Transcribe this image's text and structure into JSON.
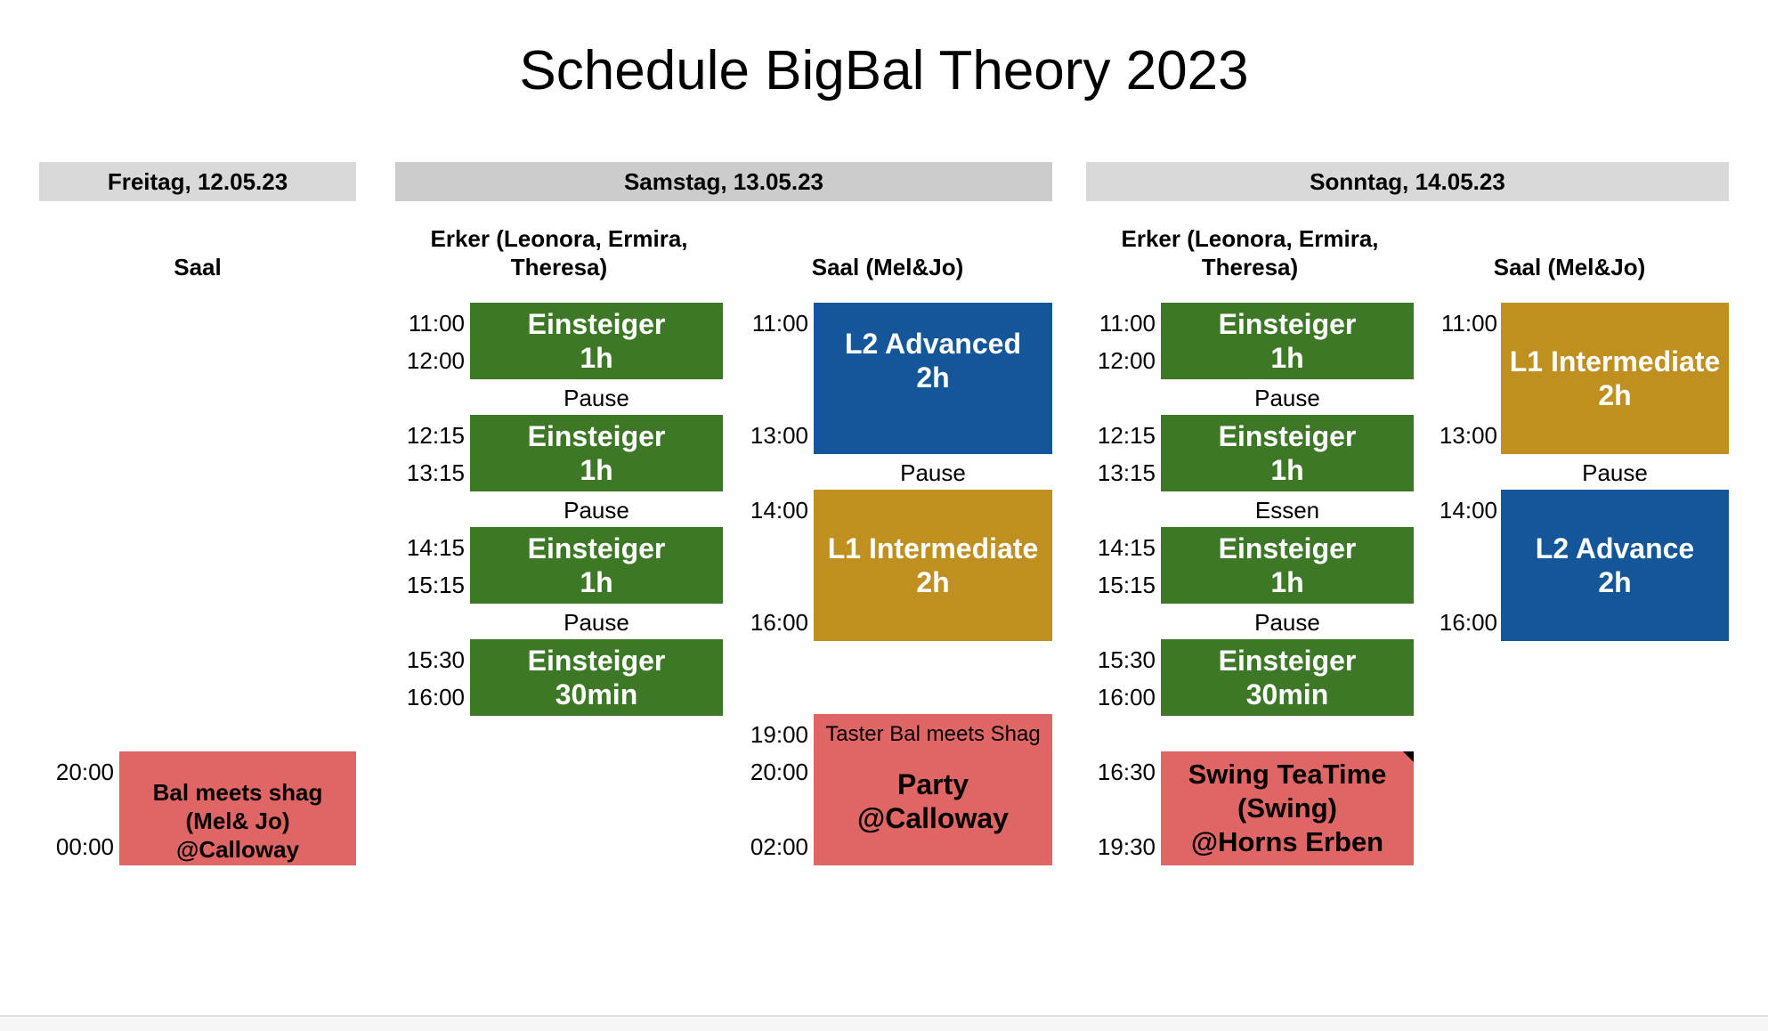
{
  "title": "Schedule BigBal Theory 2023",
  "days": {
    "fri": "Freitag, 12.05.23",
    "sat": "Samstag, 13.05.23",
    "sun": "Sonntag, 14.05.23"
  },
  "rooms": {
    "fri_saal": "Saal",
    "sat_erker": "Erker (Leonora, Ermira, Theresa)",
    "sat_saal": "Saal (Mel&Jo)",
    "sun_erker": "Erker (Leonora, Ermira, Theresa)",
    "sun_saal": "Saal (Mel&Jo)"
  },
  "friday": {
    "event": {
      "start": "20:00",
      "end": "00:00",
      "line1": "Bal meets shag",
      "line2": "(Mel& Jo)",
      "line3": "@Calloway"
    }
  },
  "sat_erker": {
    "slots": [
      {
        "start": "11:00",
        "end": "12:00",
        "line1": "Einsteiger",
        "line2": "1h"
      },
      {
        "start": "12:15",
        "end": "13:15",
        "line1": "Einsteiger",
        "line2": "1h"
      },
      {
        "start": "14:15",
        "end": "15:15",
        "line1": "Einsteiger",
        "line2": "1h"
      },
      {
        "start": "15:30",
        "end": "16:00",
        "line1": "Einsteiger",
        "line2": "30min"
      }
    ],
    "breaks": [
      "Pause",
      "Pause",
      "Pause"
    ]
  },
  "sat_saal": {
    "l2": {
      "start": "11:00",
      "end": "13:00",
      "line1": "L2 Advanced",
      "line2": "2h"
    },
    "break": "Pause",
    "l1": {
      "start": "14:00",
      "end": "16:00",
      "line1": "L1 Intermediate",
      "line2": "2h"
    },
    "party": {
      "t1": "19:00",
      "t2": "20:00",
      "t3": "02:00",
      "taster": "Taster Bal meets Shag",
      "line1": "Party",
      "line2": "@Calloway"
    }
  },
  "sun_erker": {
    "slots": [
      {
        "start": "11:00",
        "end": "12:00",
        "line1": "Einsteiger",
        "line2": "1h"
      },
      {
        "start": "12:15",
        "end": "13:15",
        "line1": "Einsteiger",
        "line2": "1h"
      },
      {
        "start": "14:15",
        "end": "15:15",
        "line1": "Einsteiger",
        "line2": "1h"
      },
      {
        "start": "15:30",
        "end": "16:00",
        "line1": "Einsteiger",
        "line2": "30min"
      }
    ],
    "breaks": [
      "Pause",
      "Essen",
      "Pause"
    ],
    "teatime": {
      "start": "16:30",
      "end": "19:30",
      "line1": "Swing TeaTime",
      "line2": "(Swing)",
      "line3": "@Horns Erben"
    }
  },
  "sun_saal": {
    "l1": {
      "start": "11:00",
      "end": "13:00",
      "line1": "L1 Intermediate",
      "line2": "2h"
    },
    "break": "Pause",
    "l2": {
      "start": "14:00",
      "end": "16:00",
      "line1": "L2 Advance",
      "line2": "2h"
    }
  },
  "colors": {
    "green": "#3c7826",
    "blue": "#135699",
    "gold": "#bf9020",
    "red": "#e06666",
    "header": "#cccccc"
  }
}
